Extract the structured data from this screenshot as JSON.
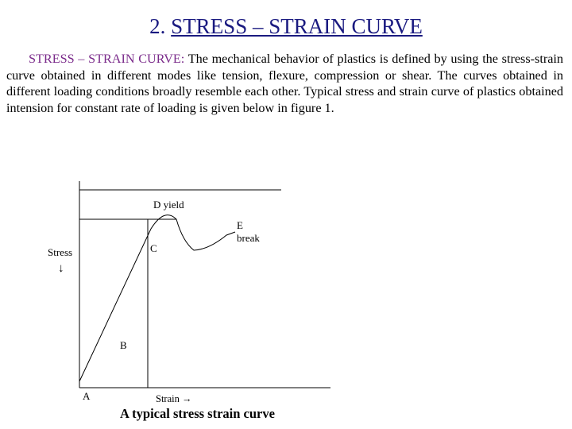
{
  "slide": {
    "title_number": "2.",
    "title_text": "STRESS – STRAIN CURVE"
  },
  "paragraph": {
    "heading": "STRESS – STRAIN CURVE:",
    "text": " The mechanical behavior of plastics is defined by using the stress-strain curve obtained in different modes like tension, flexure, compression or shear.  The curves obtained in different loading conditions broadly resemble each other. Typical stress and strain curve of plastics obtained intension for constant rate of loading is given below in figure 1."
  },
  "figure": {
    "labels": {
      "d": "D yield",
      "e_line1": "E",
      "e_line2": "break",
      "c": "C",
      "stress": "Stress",
      "stress_arrow": "↓",
      "b": "B",
      "a": "A",
      "strain": "Strain →"
    },
    "caption": "A typical stress strain curve"
  },
  "colors": {
    "title": "#1a1a80",
    "heading": "#7a2a8a",
    "lines": "#000000"
  }
}
